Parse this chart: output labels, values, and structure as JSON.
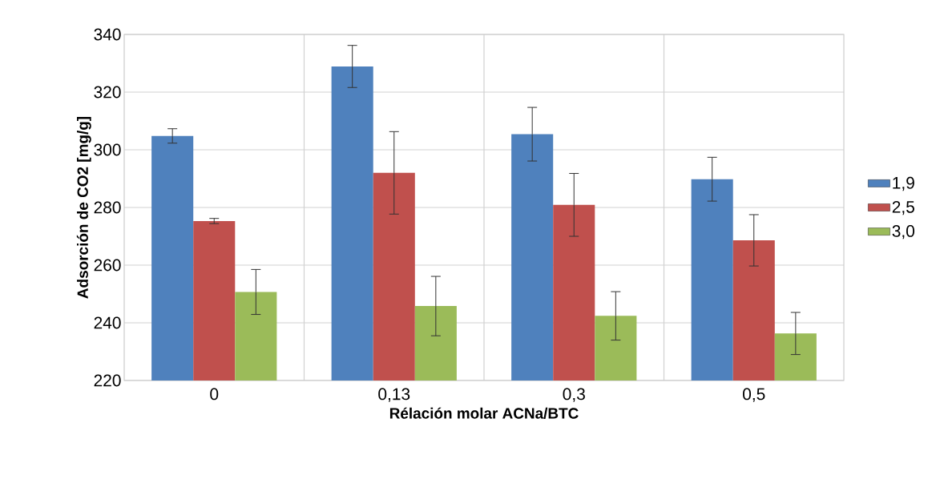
{
  "chart_data": {
    "type": "bar",
    "xlabel": "Rélación molar ACNa/BTC",
    "ylabel": "Adsorción de CO2 [mg/g]",
    "categories": [
      "0",
      "0,13",
      "0,3",
      "0,5"
    ],
    "series": [
      {
        "name": "1,9",
        "color": "#4f81bd",
        "values": [
          304.8,
          328.9,
          305.4,
          289.8
        ],
        "errors": [
          2.5,
          7.3,
          9.3,
          7.6
        ]
      },
      {
        "name": "2,5",
        "color": "#c0504d",
        "values": [
          275.3,
          292.0,
          280.9,
          268.6
        ],
        "errors": [
          0.9,
          14.3,
          10.9,
          8.9
        ]
      },
      {
        "name": "3,0",
        "color": "#9bbb59",
        "values": [
          250.7,
          245.8,
          242.4,
          236.3
        ],
        "errors": [
          7.8,
          10.3,
          8.4,
          7.3
        ]
      }
    ],
    "ylim": [
      220,
      340
    ],
    "yticks": [
      220,
      240,
      260,
      280,
      300,
      320,
      340
    ],
    "grid": true,
    "legend": "right"
  }
}
